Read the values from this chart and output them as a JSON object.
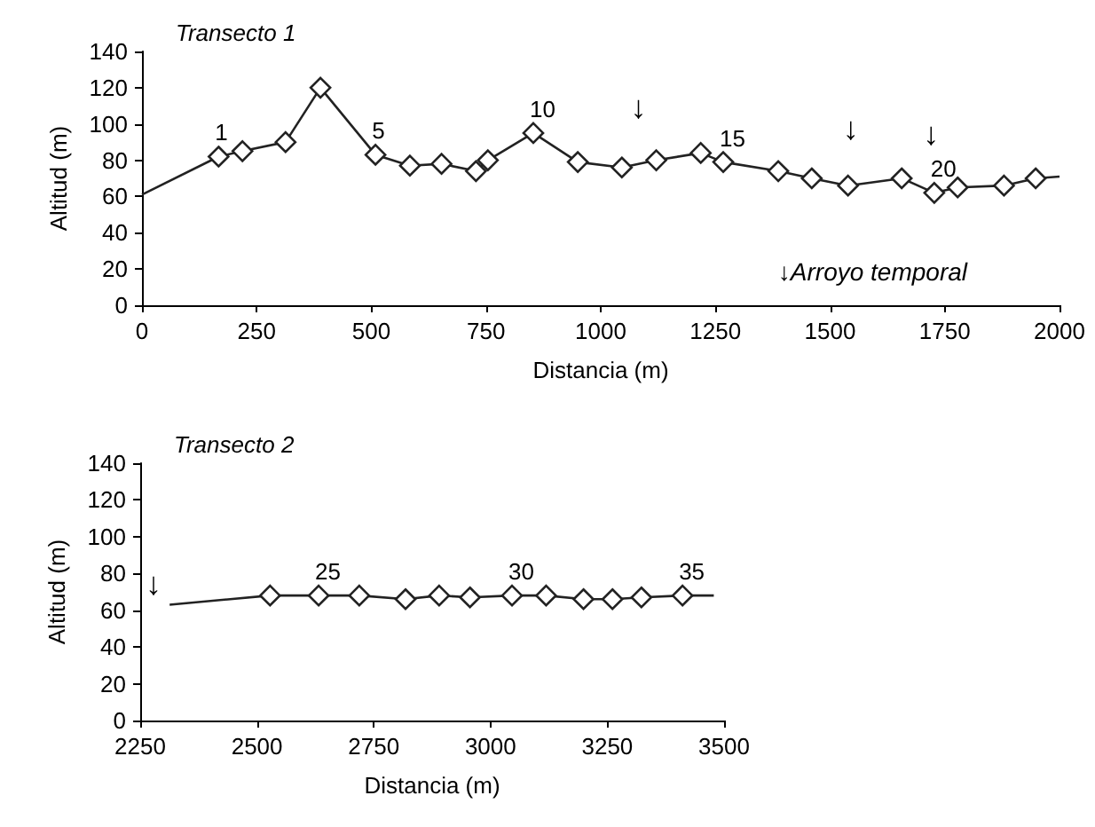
{
  "chart_data": [
    {
      "type": "line",
      "title": "Transecto 1",
      "xlabel": "Distancia (m)",
      "ylabel": "Altitud (m)",
      "xlim": [
        0,
        2000
      ],
      "xticks": [
        0,
        250,
        500,
        750,
        1000,
        1250,
        1500,
        1750,
        2000
      ],
      "ylim": [
        0,
        140
      ],
      "yticks": [
        0,
        20,
        40,
        60,
        80,
        100,
        120,
        140
      ],
      "series": [
        {
          "color": "#222222",
          "marker": "diamond",
          "x": [
            167,
            219,
            313,
            389,
            509,
            584,
            653,
            728,
            754,
            853,
            950,
            1046,
            1121,
            1218,
            1267,
            1387,
            1460,
            1539,
            1656,
            1727,
            1778,
            1879,
            1948
          ],
          "values": [
            82,
            85,
            90,
            120,
            83,
            77,
            78,
            74,
            80,
            95,
            79,
            76,
            80,
            84,
            79,
            74,
            70,
            66,
            70,
            62,
            65,
            66,
            70
          ]
        },
        {
          "color": "#222222",
          "marker": "none",
          "x": [
            0,
            167
          ],
          "values": [
            61,
            82
          ]
        },
        {
          "color": "#222222",
          "marker": "none",
          "x": [
            1948,
            2000
          ],
          "values": [
            70,
            71
          ]
        }
      ],
      "annotations": [
        {
          "text": "1",
          "x": 167,
          "y": 82
        },
        {
          "text": "5",
          "x": 509,
          "y": 83
        },
        {
          "text": "10",
          "x": 853,
          "y": 95
        },
        {
          "text": "15",
          "x": 1267,
          "y": 79
        },
        {
          "text": "20",
          "x": 1727,
          "y": 62
        },
        {
          "text": "↓",
          "x": 1082,
          "y": 78
        },
        {
          "text": "↓",
          "x": 1545,
          "y": 66
        },
        {
          "text": "↓",
          "x": 1720,
          "y": 63
        },
        "↓Arroyo temporal"
      ]
    },
    {
      "type": "line",
      "title": "Transecto 2",
      "xlabel": "Distancia (m)",
      "ylabel": "Altitud (m)",
      "xlim": [
        2250,
        3500
      ],
      "xticks": [
        2250,
        2500,
        2750,
        3000,
        3250,
        3500
      ],
      "ylim": [
        0,
        140
      ],
      "yticks": [
        0,
        20,
        40,
        60,
        80,
        100,
        120,
        140
      ],
      "series": [
        {
          "color": "#222222",
          "marker": "diamond",
          "x": [
            2528,
            2632,
            2719,
            2818,
            2890,
            2956,
            3046,
            3119,
            3199,
            3261,
            3323,
            3411
          ],
          "values": [
            68,
            68,
            68,
            66,
            68,
            67,
            68,
            68,
            66,
            66,
            67,
            68
          ]
        },
        {
          "color": "#222222",
          "marker": "none",
          "x": [
            2313,
            2528
          ],
          "values": [
            63,
            68
          ]
        },
        {
          "color": "#222222",
          "marker": "none",
          "x": [
            3411,
            3478
          ],
          "values": [
            68,
            68
          ]
        }
      ],
      "annotations": [
        {
          "text": "25",
          "x": 2632,
          "y": 68
        },
        {
          "text": "30",
          "x": 3046,
          "y": 68
        },
        {
          "text": "35",
          "x": 3411,
          "y": 68
        },
        "↓"
      ]
    }
  ]
}
